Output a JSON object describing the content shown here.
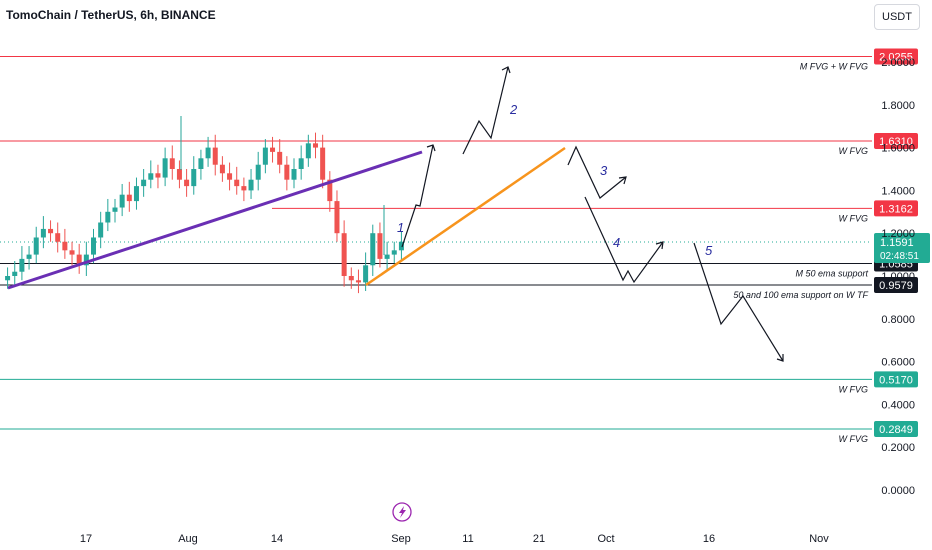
{
  "header": {
    "symbol_title": "TomoChain / TetherUS, 6h, BINANCE",
    "currency_button": "USDT"
  },
  "chart_data": {
    "type": "candlestick",
    "title": "TomoChain / TetherUS, 6h, BINANCE",
    "ylim": [
      0.0,
      2.1
    ],
    "y_ticks": [
      "2.0000",
      "1.8000",
      "1.6000",
      "1.4000",
      "1.2000",
      "1.0000",
      "0.8000",
      "0.6000",
      "0.4000",
      "0.2000",
      "0.0000"
    ],
    "x_ticks": [
      "17",
      "Aug",
      "14",
      "Sep",
      "11",
      "21",
      "Oct",
      "16",
      "Nov"
    ],
    "colors": {
      "up": "#26a69a",
      "down": "#ef5350",
      "resistance": "#f23645",
      "support": "#22ab94",
      "trend": "#6a2fb4",
      "trend2": "#f7941d"
    },
    "horizontal_levels": [
      {
        "price": 2.0255,
        "label": "2.0255",
        "note": "M FVG + W FVG",
        "color": "#f23645"
      },
      {
        "price": 1.631,
        "label": "1.6310",
        "note": "W FVG",
        "color": "#f23645"
      },
      {
        "price": 1.3162,
        "label": "1.3162",
        "note": "W FVG",
        "color": "#f23645"
      },
      {
        "price": 1.0585,
        "label": "1.0585",
        "note": "M 50 ema support",
        "color": "#131722"
      },
      {
        "price": 0.9579,
        "label": "0.9579",
        "note": "50 and 100 ema support on W TF",
        "color": "#131722"
      },
      {
        "price": 0.517,
        "label": "0.5170",
        "note": "W FVG",
        "color": "#22ab94"
      },
      {
        "price": 0.2849,
        "label": "0.2849",
        "note": "W FVG",
        "color": "#22ab94"
      }
    ],
    "current_price": {
      "value": 1.1591,
      "label": "1.1591",
      "countdown": "02:48:51",
      "color": "#22ab94"
    },
    "candles_approx_close": [
      1.0,
      1.02,
      1.08,
      1.1,
      1.18,
      1.22,
      1.2,
      1.16,
      1.12,
      1.1,
      1.05,
      1.1,
      1.18,
      1.25,
      1.3,
      1.32,
      1.38,
      1.35,
      1.42,
      1.45,
      1.48,
      1.46,
      1.55,
      1.5,
      1.45,
      1.42,
      1.5,
      1.55,
      1.6,
      1.52,
      1.48,
      1.45,
      1.42,
      1.4,
      1.45,
      1.52,
      1.6,
      1.58,
      1.52,
      1.45,
      1.5,
      1.55,
      1.62,
      1.6,
      1.45,
      1.35,
      1.2,
      1.0,
      0.98,
      0.97,
      1.05,
      1.2,
      1.08,
      1.1,
      1.12,
      1.16
    ],
    "wave_labels": [
      "1",
      "2",
      "3",
      "4",
      "5"
    ]
  }
}
